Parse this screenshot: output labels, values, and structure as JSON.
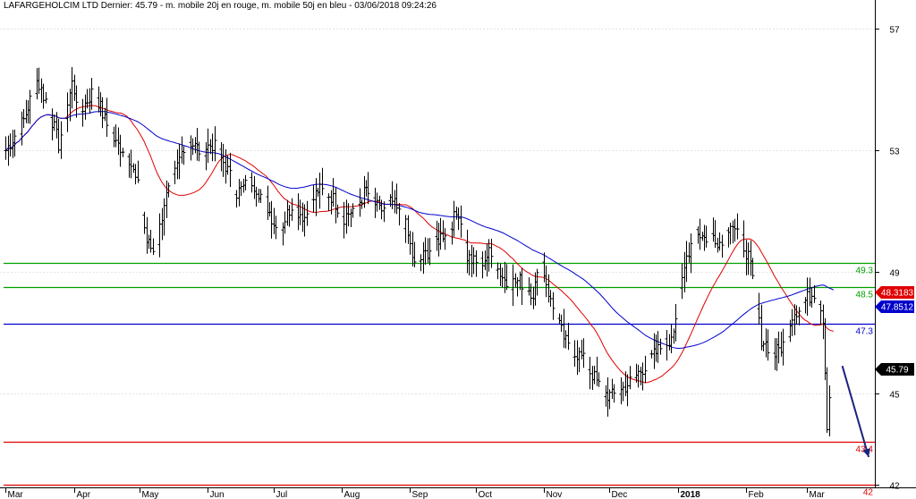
{
  "chart_data": {
    "type": "candlestick",
    "title": "LAFARGEHOLCIM LTD Dernier: 45.79 - m. mobile 20j en rouge, m. mobile 50j en bleu - 03/06/2018 09:24:26",
    "months": [
      {
        "label": "Mar",
        "day": 0
      },
      {
        "label": "Apr",
        "day": 31
      },
      {
        "label": "May",
        "day": 61
      },
      {
        "label": "Jun",
        "day": 92
      },
      {
        "label": "Jul",
        "day": 122
      },
      {
        "label": "Aug",
        "day": 153
      },
      {
        "label": "Sep",
        "day": 184
      },
      {
        "label": "Oct",
        "day": 214
      },
      {
        "label": "Nov",
        "day": 245
      },
      {
        "label": "Dec",
        "day": 275
      },
      {
        "label": "2018",
        "day": 306
      },
      {
        "label": "Feb",
        "day": 337
      },
      {
        "label": "Mar",
        "day": 365
      }
    ],
    "x_range_days": [
      -1,
      395
    ],
    "y_ticks": [
      "57",
      "53",
      "49",
      "45",
      "42"
    ],
    "ylim": [
      41.9,
      57.6
    ],
    "levels": [
      {
        "label": "49.3",
        "value": 49.3,
        "color": "#00a000"
      },
      {
        "label": "48.5",
        "value": 48.5,
        "color": "#00a000"
      },
      {
        "label": "47.3",
        "value": 47.3,
        "color": "#0000cc"
      },
      {
        "label": "43.4",
        "value": 43.4,
        "color": "#e00000"
      },
      {
        "label": "42",
        "value": 42.0,
        "color": "#e00000"
      }
    ],
    "tags": [
      {
        "label": "48.3183",
        "value": 48.32,
        "bg": "#e00000"
      },
      {
        "label": "47.8512",
        "value": 47.85,
        "bg": "#0000cc"
      },
      {
        "label": "45.79",
        "value": 45.79,
        "bg": "#000000"
      }
    ],
    "ma20_color": "#e00000",
    "ma50_color": "#0000cc",
    "anchors": [
      [
        0,
        53.0
      ],
      [
        8,
        54.0
      ],
      [
        14,
        55.3
      ],
      [
        19,
        54.5
      ],
      [
        24,
        53.2
      ],
      [
        30,
        55.2
      ],
      [
        34,
        54.3
      ],
      [
        40,
        55.0
      ],
      [
        45,
        54.0
      ],
      [
        50,
        53.2
      ],
      [
        55,
        53.0
      ],
      [
        60,
        51.8
      ],
      [
        64,
        50.0
      ],
      [
        68,
        49.6
      ],
      [
        72,
        51.3
      ],
      [
        76,
        52.0
      ],
      [
        82,
        53.4
      ],
      [
        88,
        53.0
      ],
      [
        94,
        53.2
      ],
      [
        100,
        52.5
      ],
      [
        105,
        51.6
      ],
      [
        112,
        52.0
      ],
      [
        118,
        51.3
      ],
      [
        124,
        50.3
      ],
      [
        130,
        51.2
      ],
      [
        136,
        50.8
      ],
      [
        142,
        51.7
      ],
      [
        148,
        51.5
      ],
      [
        154,
        50.8
      ],
      [
        160,
        51.2
      ],
      [
        164,
        51.7
      ],
      [
        170,
        51.0
      ],
      [
        176,
        51.3
      ],
      [
        182,
        50.5
      ],
      [
        186,
        49.2
      ],
      [
        190,
        49.5
      ],
      [
        196,
        50.0
      ],
      [
        202,
        50.5
      ],
      [
        206,
        51.0
      ],
      [
        210,
        49.5
      ],
      [
        215,
        49.2
      ],
      [
        220,
        49.6
      ],
      [
        228,
        48.6
      ],
      [
        234,
        48.7
      ],
      [
        240,
        48.3
      ],
      [
        244,
        49.3
      ],
      [
        248,
        48.0
      ],
      [
        252,
        47.2
      ],
      [
        256,
        46.5
      ],
      [
        262,
        46.2
      ],
      [
        268,
        45.5
      ],
      [
        272,
        45.0
      ],
      [
        276,
        44.9
      ],
      [
        280,
        45.1
      ],
      [
        286,
        45.5
      ],
      [
        292,
        46.0
      ],
      [
        298,
        46.5
      ],
      [
        302,
        46.7
      ],
      [
        306,
        47.8
      ],
      [
        310,
        49.5
      ],
      [
        314,
        50.4
      ],
      [
        318,
        50.1
      ],
      [
        322,
        50.2
      ],
      [
        326,
        49.9
      ],
      [
        330,
        50.7
      ],
      [
        334,
        50.2
      ],
      [
        338,
        49.5
      ],
      [
        340,
        48.7
      ],
      [
        344,
        46.8
      ],
      [
        350,
        46.3
      ],
      [
        354,
        46.6
      ],
      [
        358,
        47.6
      ],
      [
        362,
        47.9
      ],
      [
        366,
        48.2
      ],
      [
        369,
        48.4
      ],
      [
        372,
        47.5
      ],
      [
        374,
        44.0
      ],
      [
        376,
        45.8
      ],
      [
        377,
        45.79
      ]
    ],
    "arrow": {
      "from": [
        381,
        45.9
      ],
      "to": [
        393,
        42.9
      ],
      "color": "#1a237e"
    }
  }
}
